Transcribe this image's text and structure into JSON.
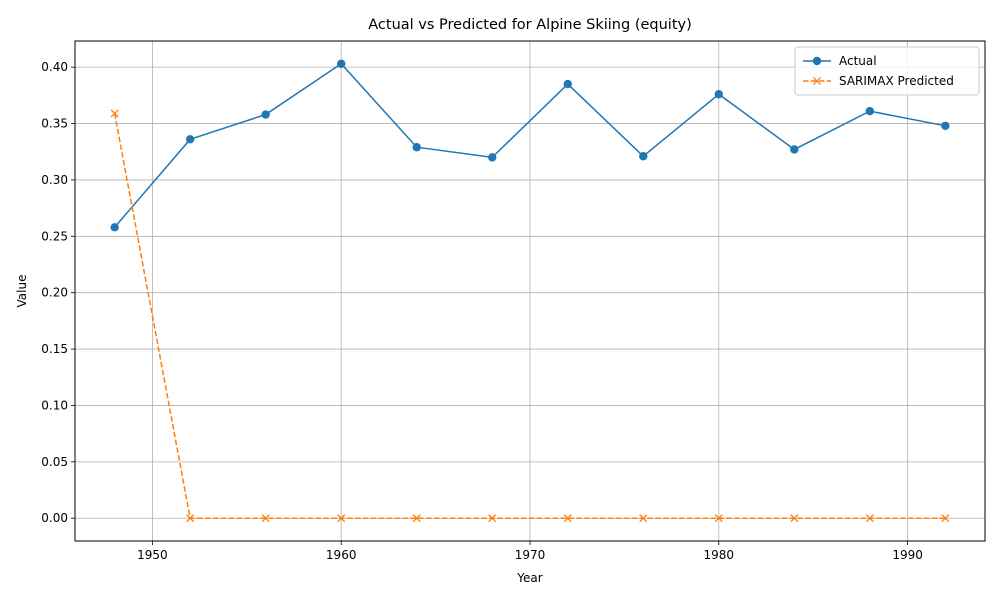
{
  "chart_data": {
    "type": "line",
    "title": "Actual vs Predicted for Alpine Skiing (equity)",
    "xlabel": "Year",
    "ylabel": "Value",
    "xlim": [
      1945.9,
      1994.1
    ],
    "ylim": [
      -0.0202,
      0.4232
    ],
    "xticks": [
      1950,
      1960,
      1970,
      1980,
      1990
    ],
    "yticks": [
      0.0,
      0.05,
      0.1,
      0.15,
      0.2,
      0.25,
      0.3,
      0.35,
      0.4
    ],
    "grid": true,
    "legend_position": "top-right",
    "x": [
      1948,
      1952,
      1956,
      1960,
      1964,
      1968,
      1972,
      1976,
      1980,
      1984,
      1988,
      1992
    ],
    "series": [
      {
        "name": "Actual",
        "color": "#1f77b4",
        "line_style": "solid",
        "marker": "circle",
        "values": [
          0.258,
          0.336,
          0.358,
          0.403,
          0.329,
          0.32,
          0.385,
          0.321,
          0.376,
          0.327,
          0.361,
          0.348
        ]
      },
      {
        "name": "SARIMAX Predicted",
        "color": "#ff7f0e",
        "line_style": "dashed",
        "marker": "x",
        "values": [
          0.359,
          0.0,
          0.0,
          0.0,
          0.0,
          0.0,
          0.0,
          0.0,
          0.0,
          0.0,
          0.0,
          0.0
        ]
      }
    ]
  }
}
